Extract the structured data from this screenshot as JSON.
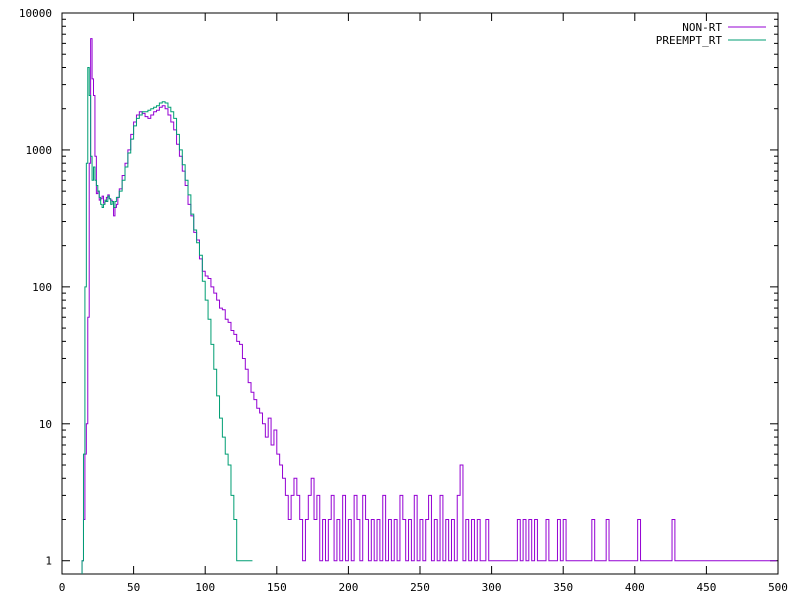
{
  "chart_data": {
    "type": "line",
    "title": "",
    "xlabel": "",
    "ylabel": "",
    "xlim": [
      0,
      500
    ],
    "ylim": [
      0.8,
      10000
    ],
    "yscale": "log",
    "grid": false,
    "legend_position": "top-right",
    "x_ticks": [
      0,
      50,
      100,
      150,
      200,
      250,
      300,
      350,
      400,
      450,
      500
    ],
    "x_tick_labels": [
      "0",
      "50",
      "100",
      "150",
      "200",
      "250",
      "300",
      "350",
      "400",
      "450",
      "500"
    ],
    "y_ticks": [
      1,
      10,
      100,
      1000,
      10000
    ],
    "y_tick_labels": [
      "1",
      "10",
      "100",
      "1000",
      "10000"
    ],
    "series": [
      {
        "name": "NON-RT",
        "color": "#9400d3",
        "points": [
          [
            14,
            1
          ],
          [
            15,
            2
          ],
          [
            16,
            6
          ],
          [
            17,
            10
          ],
          [
            18,
            60
          ],
          [
            19,
            800
          ],
          [
            20,
            6500
          ],
          [
            21,
            3300
          ],
          [
            22,
            2500
          ],
          [
            23,
            900
          ],
          [
            24,
            480
          ],
          [
            25,
            500
          ],
          [
            26,
            430
          ],
          [
            27,
            440
          ],
          [
            28,
            460
          ],
          [
            29,
            410
          ],
          [
            30,
            420
          ],
          [
            31,
            450
          ],
          [
            32,
            470
          ],
          [
            33,
            440
          ],
          [
            34,
            430
          ],
          [
            35,
            420
          ],
          [
            36,
            330
          ],
          [
            37,
            380
          ],
          [
            38,
            400
          ],
          [
            39,
            450
          ],
          [
            40,
            520
          ],
          [
            42,
            650
          ],
          [
            44,
            800
          ],
          [
            46,
            1000
          ],
          [
            48,
            1300
          ],
          [
            50,
            1600
          ],
          [
            52,
            1800
          ],
          [
            54,
            1900
          ],
          [
            56,
            1850
          ],
          [
            58,
            1750
          ],
          [
            60,
            1700
          ],
          [
            62,
            1800
          ],
          [
            64,
            1900
          ],
          [
            66,
            1950
          ],
          [
            68,
            2050
          ],
          [
            70,
            2100
          ],
          [
            72,
            2000
          ],
          [
            74,
            1800
          ],
          [
            76,
            1600
          ],
          [
            78,
            1400
          ],
          [
            80,
            1100
          ],
          [
            82,
            900
          ],
          [
            84,
            700
          ],
          [
            86,
            550
          ],
          [
            88,
            400
          ],
          [
            90,
            330
          ],
          [
            92,
            250
          ],
          [
            94,
            220
          ],
          [
            96,
            160
          ],
          [
            98,
            130
          ],
          [
            100,
            120
          ],
          [
            102,
            115
          ],
          [
            104,
            100
          ],
          [
            106,
            90
          ],
          [
            108,
            80
          ],
          [
            110,
            70
          ],
          [
            112,
            68
          ],
          [
            114,
            58
          ],
          [
            116,
            55
          ],
          [
            118,
            48
          ],
          [
            120,
            45
          ],
          [
            122,
            40
          ],
          [
            124,
            38
          ],
          [
            126,
            30
          ],
          [
            128,
            25
          ],
          [
            130,
            20
          ],
          [
            132,
            17
          ],
          [
            134,
            15
          ],
          [
            136,
            13
          ],
          [
            138,
            12
          ],
          [
            140,
            10
          ],
          [
            142,
            8
          ],
          [
            144,
            11
          ],
          [
            146,
            7
          ],
          [
            148,
            9
          ],
          [
            150,
            6
          ],
          [
            152,
            5
          ],
          [
            154,
            4
          ],
          [
            156,
            3
          ],
          [
            158,
            2
          ],
          [
            160,
            3
          ],
          [
            162,
            4
          ],
          [
            164,
            3
          ],
          [
            166,
            2
          ],
          [
            168,
            1
          ],
          [
            170,
            2
          ],
          [
            172,
            3
          ],
          [
            174,
            4
          ],
          [
            176,
            2
          ],
          [
            178,
            3
          ],
          [
            180,
            1
          ],
          [
            182,
            2
          ],
          [
            184,
            1
          ],
          [
            186,
            2
          ],
          [
            188,
            3
          ],
          [
            190,
            1
          ],
          [
            192,
            2
          ],
          [
            194,
            1
          ],
          [
            196,
            3
          ],
          [
            198,
            1
          ],
          [
            200,
            2
          ],
          [
            202,
            1
          ],
          [
            204,
            3
          ],
          [
            206,
            2
          ],
          [
            208,
            1
          ],
          [
            210,
            3
          ],
          [
            212,
            2
          ],
          [
            214,
            1
          ],
          [
            216,
            2
          ],
          [
            218,
            1
          ],
          [
            220,
            2
          ],
          [
            222,
            1
          ],
          [
            224,
            3
          ],
          [
            226,
            1
          ],
          [
            228,
            2
          ],
          [
            230,
            1
          ],
          [
            232,
            2
          ],
          [
            234,
            1
          ],
          [
            236,
            3
          ],
          [
            238,
            2
          ],
          [
            240,
            1
          ],
          [
            242,
            2
          ],
          [
            244,
            1
          ],
          [
            246,
            3
          ],
          [
            248,
            1
          ],
          [
            250,
            2
          ],
          [
            252,
            1
          ],
          [
            254,
            2
          ],
          [
            256,
            3
          ],
          [
            258,
            1
          ],
          [
            260,
            2
          ],
          [
            262,
            1
          ],
          [
            264,
            3
          ],
          [
            266,
            1
          ],
          [
            268,
            2
          ],
          [
            270,
            1
          ],
          [
            272,
            2
          ],
          [
            274,
            1
          ],
          [
            276,
            3
          ],
          [
            278,
            5
          ],
          [
            280,
            1
          ],
          [
            282,
            2
          ],
          [
            284,
            1
          ],
          [
            286,
            2
          ],
          [
            288,
            1
          ],
          [
            290,
            2
          ],
          [
            292,
            1
          ],
          [
            294,
            1
          ],
          [
            296,
            2
          ],
          [
            298,
            1
          ],
          [
            300,
            1
          ],
          [
            302,
            1
          ],
          [
            304,
            1
          ],
          [
            306,
            1
          ],
          [
            308,
            1
          ],
          [
            310,
            1
          ],
          [
            312,
            1
          ],
          [
            314,
            1
          ],
          [
            316,
            1
          ],
          [
            318,
            2
          ],
          [
            320,
            1
          ],
          [
            322,
            2
          ],
          [
            324,
            1
          ],
          [
            326,
            2
          ],
          [
            328,
            1
          ],
          [
            330,
            2
          ],
          [
            332,
            1
          ],
          [
            334,
            1
          ],
          [
            336,
            1
          ],
          [
            338,
            2
          ],
          [
            340,
            1
          ],
          [
            342,
            1
          ],
          [
            344,
            1
          ],
          [
            346,
            2
          ],
          [
            348,
            1
          ],
          [
            350,
            2
          ],
          [
            352,
            1
          ],
          [
            354,
            1
          ],
          [
            356,
            1
          ],
          [
            358,
            1
          ],
          [
            360,
            1
          ],
          [
            362,
            1
          ],
          [
            364,
            1
          ],
          [
            366,
            1
          ],
          [
            368,
            1
          ],
          [
            370,
            2
          ],
          [
            372,
            1
          ],
          [
            374,
            1
          ],
          [
            376,
            1
          ],
          [
            378,
            1
          ],
          [
            380,
            2
          ],
          [
            382,
            1
          ],
          [
            384,
            1
          ],
          [
            386,
            1
          ],
          [
            388,
            1
          ],
          [
            390,
            1
          ],
          [
            392,
            1
          ],
          [
            394,
            1
          ],
          [
            396,
            1
          ],
          [
            398,
            1
          ],
          [
            400,
            1
          ],
          [
            402,
            2
          ],
          [
            404,
            1
          ],
          [
            406,
            1
          ],
          [
            408,
            1
          ],
          [
            410,
            1
          ],
          [
            412,
            1
          ],
          [
            414,
            1
          ],
          [
            416,
            1
          ],
          [
            418,
            1
          ],
          [
            420,
            1
          ],
          [
            422,
            1
          ],
          [
            424,
            1
          ],
          [
            426,
            2
          ],
          [
            428,
            1
          ],
          [
            430,
            1
          ],
          [
            432,
            1
          ],
          [
            434,
            1
          ],
          [
            436,
            1
          ],
          [
            438,
            1
          ],
          [
            440,
            1
          ],
          [
            442,
            1
          ],
          [
            444,
            1
          ],
          [
            446,
            1
          ],
          [
            448,
            1
          ],
          [
            450,
            1
          ],
          [
            452,
            1
          ],
          [
            454,
            1
          ],
          [
            456,
            1
          ],
          [
            458,
            1
          ],
          [
            460,
            1
          ],
          [
            462,
            1
          ],
          [
            464,
            1
          ],
          [
            466,
            1
          ],
          [
            468,
            1
          ],
          [
            470,
            1
          ],
          [
            472,
            1
          ],
          [
            474,
            1
          ],
          [
            476,
            1
          ],
          [
            478,
            1
          ],
          [
            480,
            1
          ],
          [
            482,
            1
          ],
          [
            484,
            1
          ],
          [
            486,
            1
          ],
          [
            488,
            1
          ],
          [
            490,
            1
          ],
          [
            492,
            1
          ],
          [
            494,
            1
          ],
          [
            496,
            1
          ],
          [
            498,
            1
          ]
        ]
      },
      {
        "name": "PREEMPT_RT",
        "color": "#009e73",
        "points": [
          [
            14,
            1
          ],
          [
            15,
            6
          ],
          [
            16,
            100
          ],
          [
            17,
            800
          ],
          [
            18,
            4000
          ],
          [
            19,
            2500
          ],
          [
            20,
            900
          ],
          [
            21,
            600
          ],
          [
            22,
            750
          ],
          [
            23,
            600
          ],
          [
            24,
            550
          ],
          [
            25,
            500
          ],
          [
            26,
            450
          ],
          [
            27,
            400
          ],
          [
            28,
            380
          ],
          [
            29,
            400
          ],
          [
            30,
            430
          ],
          [
            31,
            420
          ],
          [
            32,
            460
          ],
          [
            33,
            440
          ],
          [
            34,
            400
          ],
          [
            35,
            420
          ],
          [
            36,
            380
          ],
          [
            37,
            420
          ],
          [
            38,
            450
          ],
          [
            40,
            500
          ],
          [
            42,
            600
          ],
          [
            44,
            750
          ],
          [
            46,
            950
          ],
          [
            48,
            1200
          ],
          [
            50,
            1500
          ],
          [
            52,
            1700
          ],
          [
            54,
            1800
          ],
          [
            56,
            1900
          ],
          [
            58,
            1900
          ],
          [
            60,
            1950
          ],
          [
            62,
            2000
          ],
          [
            64,
            2050
          ],
          [
            66,
            2100
          ],
          [
            68,
            2200
          ],
          [
            70,
            2250
          ],
          [
            72,
            2200
          ],
          [
            74,
            2050
          ],
          [
            76,
            1900
          ],
          [
            78,
            1700
          ],
          [
            80,
            1300
          ],
          [
            82,
            1000
          ],
          [
            84,
            780
          ],
          [
            86,
            600
          ],
          [
            88,
            470
          ],
          [
            90,
            340
          ],
          [
            92,
            260
          ],
          [
            94,
            210
          ],
          [
            96,
            170
          ],
          [
            98,
            110
          ],
          [
            100,
            80
          ],
          [
            102,
            58
          ],
          [
            104,
            38
          ],
          [
            106,
            25
          ],
          [
            108,
            16
          ],
          [
            110,
            11
          ],
          [
            112,
            8
          ],
          [
            114,
            6
          ],
          [
            116,
            5
          ],
          [
            118,
            3
          ],
          [
            120,
            2
          ],
          [
            122,
            1
          ],
          [
            124,
            1
          ],
          [
            126,
            1
          ],
          [
            128,
            1
          ],
          [
            130,
            1
          ],
          [
            132,
            1
          ]
        ]
      }
    ]
  }
}
